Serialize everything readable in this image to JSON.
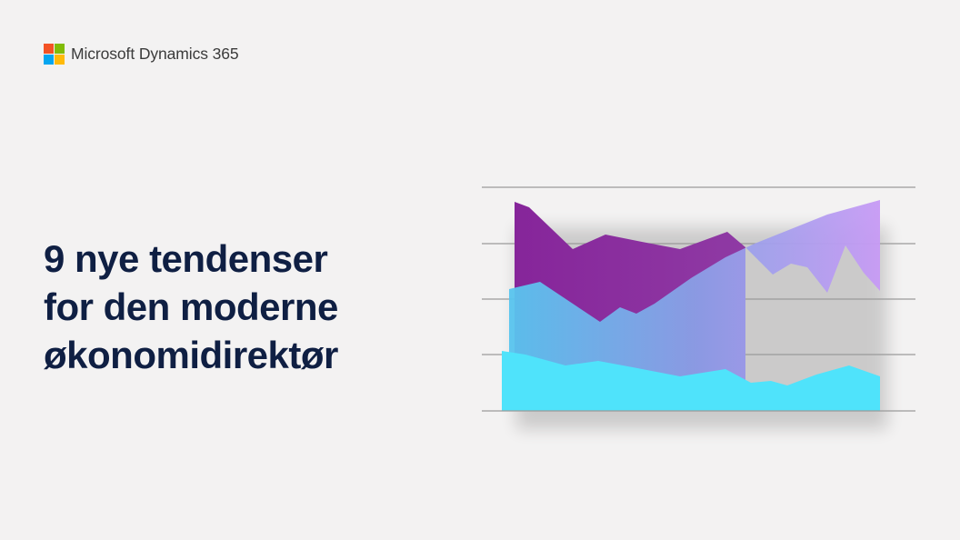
{
  "brand": {
    "name": "Microsoft Dynamics 365",
    "logo_colors": [
      "#f35325",
      "#81bc06",
      "#05a6f0",
      "#ffba08"
    ]
  },
  "headline": {
    "lines": [
      "9 nye tendenser",
      "for den moderne",
      "økonomidirektør"
    ]
  },
  "colors": {
    "background": "#f3f2f2",
    "headline": "#0f1f43",
    "purple": "#8a2c9c",
    "lavender": "#c08cf0",
    "cyan": "#4fe3fb"
  }
}
